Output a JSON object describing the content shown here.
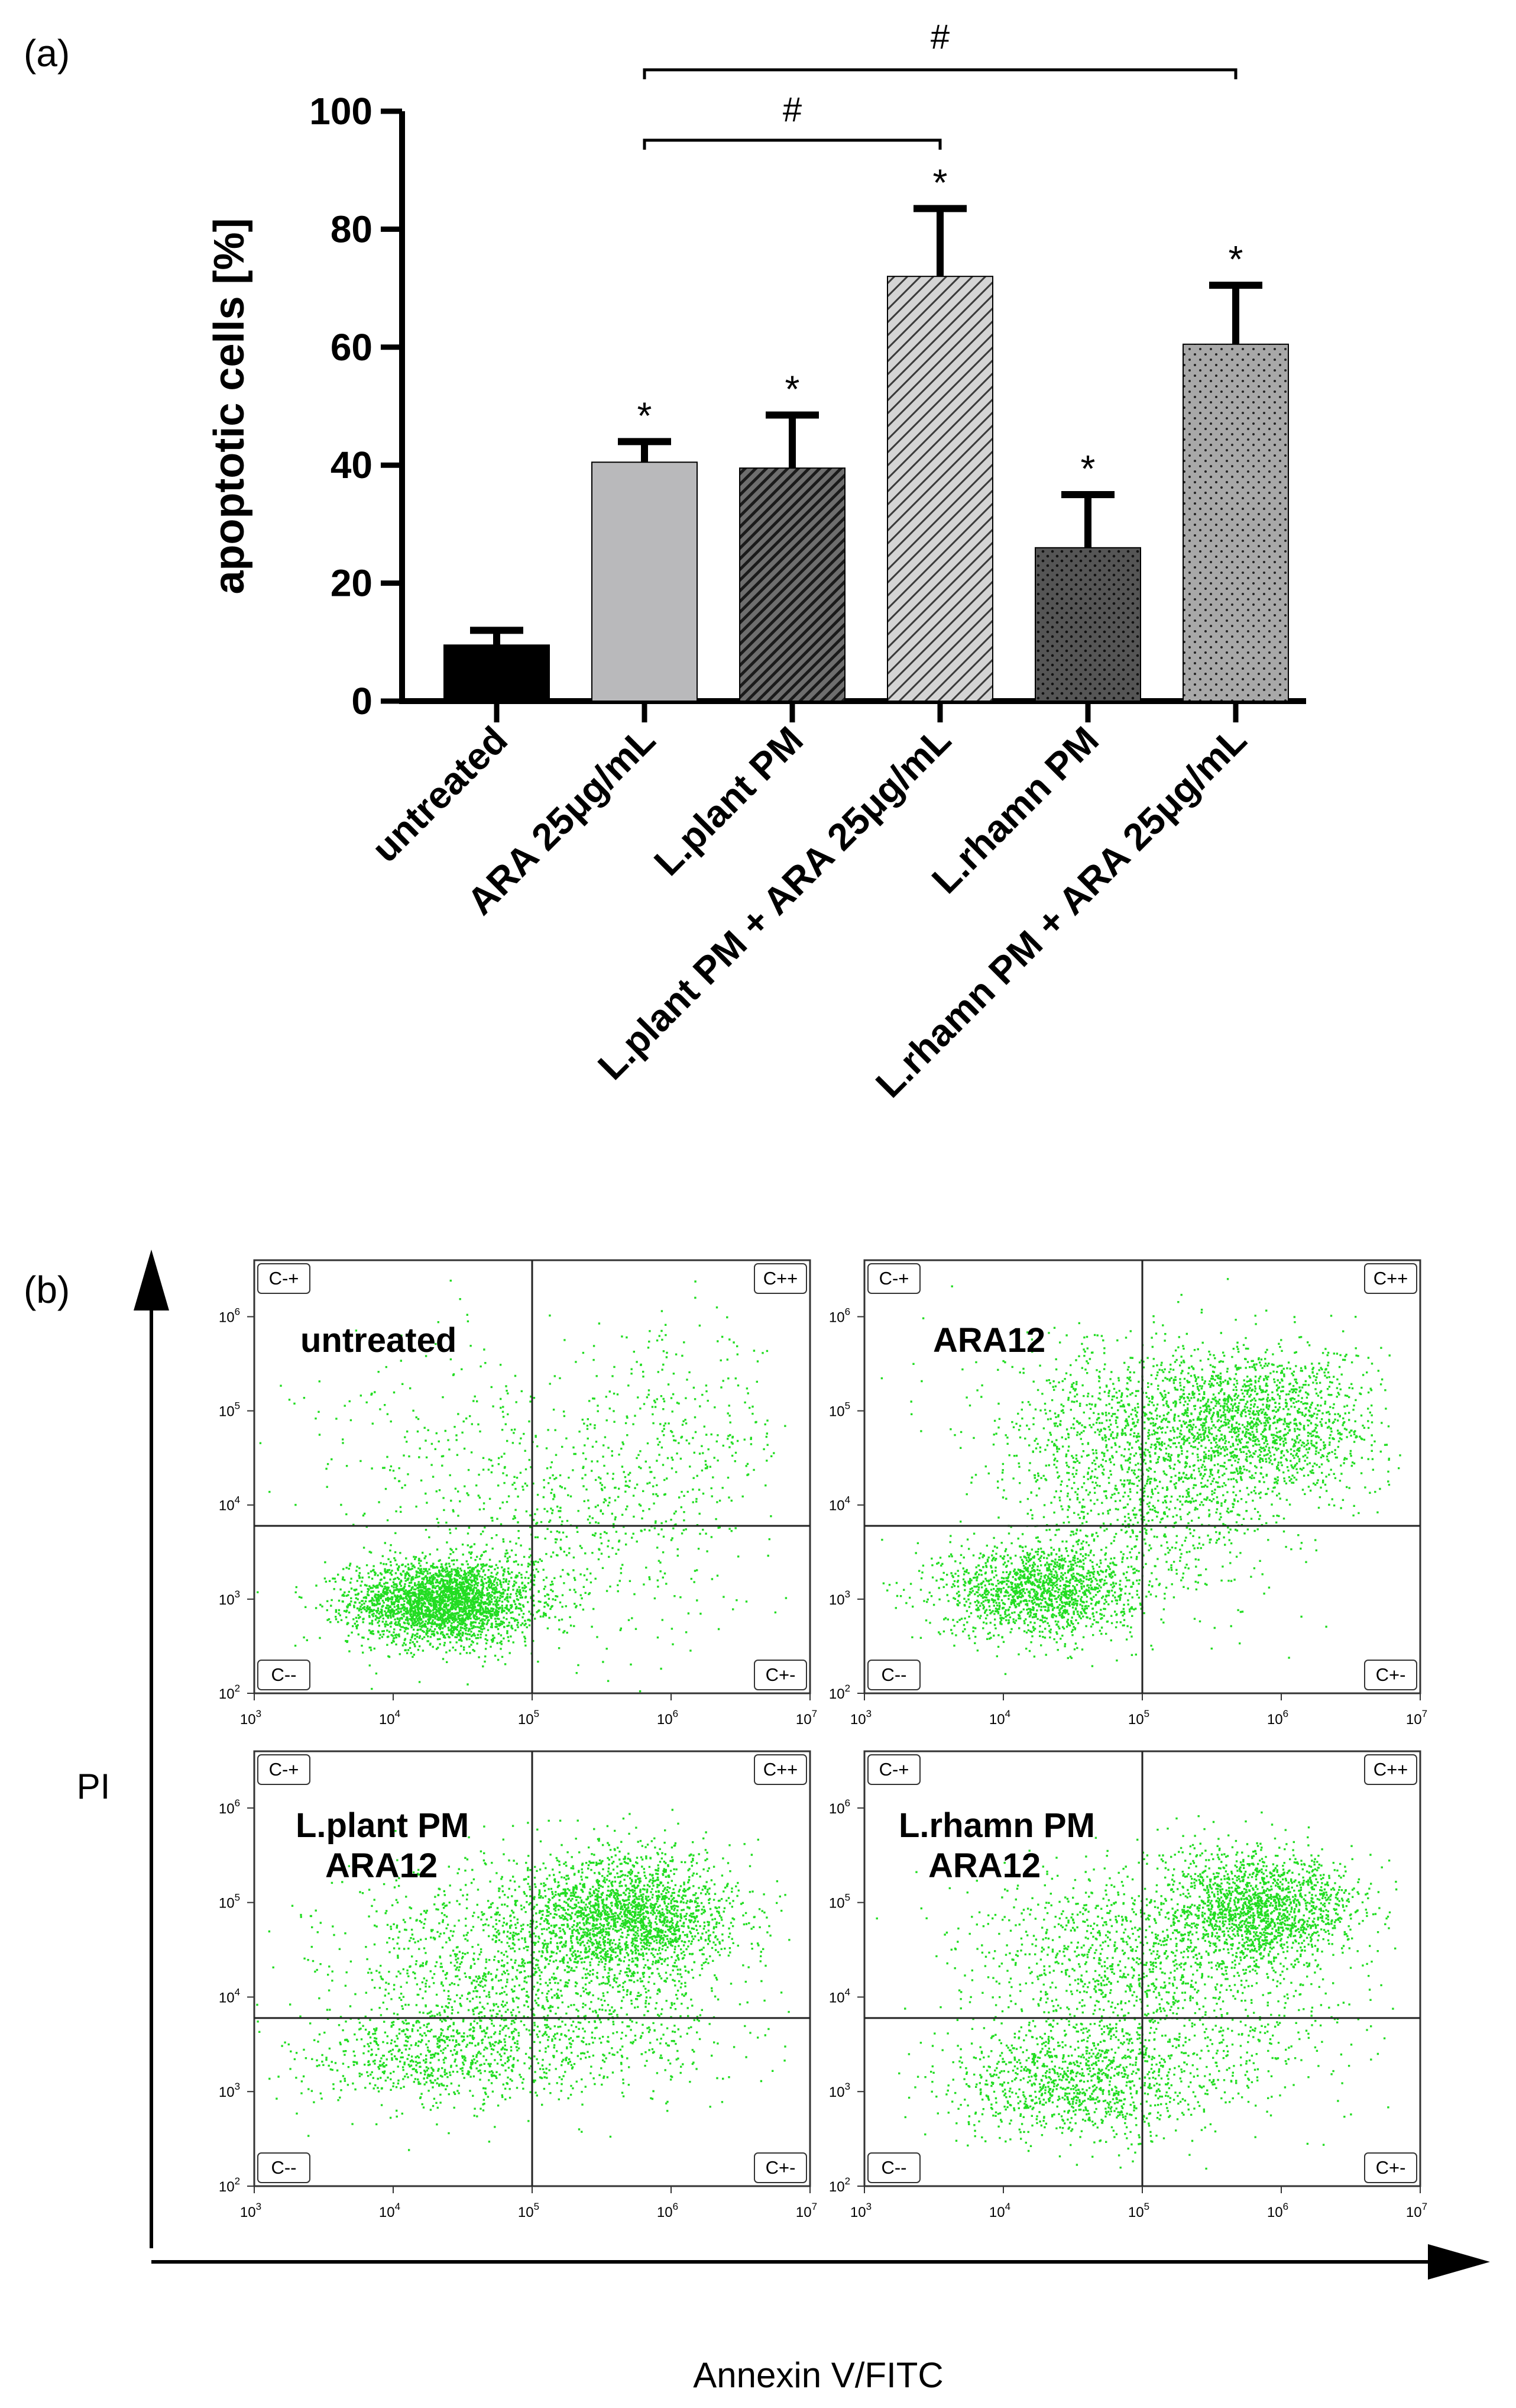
{
  "panel_a_label": "(a)",
  "panel_b_label": "(b)",
  "chart_data": [
    {
      "type": "bar",
      "ylabel": "apoptotic cells [%]",
      "xlabel": "",
      "ylim": [
        0,
        100
      ],
      "yticks": [
        0,
        20,
        40,
        60,
        80,
        100
      ],
      "categories": [
        "untreated",
        "ARA 25μg/mL",
        "L.plant PM",
        "L.plant PM + ARA 25μg/mL",
        "L.rhamn PM",
        "L.rhamn PM + ARA 25μg/mL"
      ],
      "values": [
        9.5,
        40.5,
        39.5,
        72,
        26,
        60.5
      ],
      "errors": [
        2.5,
        3.5,
        9,
        11.5,
        9,
        10
      ],
      "significance_marks": [
        "",
        "*",
        "*",
        "*",
        "*",
        "*"
      ],
      "bar_fills": [
        "solid black",
        "solid light gray",
        "dense diagonal hatch, dark",
        "diagonal hatch, light",
        "dotted, dark",
        "dotted, light"
      ],
      "comparison_brackets": [
        {
          "from": "ARA 25μg/mL",
          "to": "L.plant PM + ARA 25μg/mL",
          "label": "#"
        },
        {
          "from": "ARA 25μg/mL",
          "to": "L.rhamn PM + ARA 25μg/mL",
          "label": "#"
        }
      ],
      "grid": false
    },
    {
      "type": "scatter",
      "xlabel": "Annexin V/FITC",
      "ylabel": "PI",
      "x_scale": "log",
      "y_scale": "log",
      "x_tick_exponents": [
        3,
        4,
        5,
        6,
        7
      ],
      "y_tick_exponents": [
        2,
        3,
        4,
        5,
        6
      ],
      "tick_base": "10",
      "gate_x": 100000,
      "gate_y": 6000,
      "quadrant_labels": {
        "upper_left": "C-+",
        "upper_right": "C++",
        "lower_left": "C--",
        "lower_right": "C+-"
      },
      "point_color": "#22dd22",
      "panels": [
        {
          "name": "untreated",
          "label_lines": [
            "untreated"
          ]
        },
        {
          "name": "ara12",
          "label_lines": [
            "ARA12"
          ]
        },
        {
          "name": "lplant",
          "label_lines": [
            "L.plant PM",
            "ARA12"
          ]
        },
        {
          "name": "lrhamn",
          "label_lines": [
            "L.rhamn PM",
            "ARA12"
          ]
        }
      ]
    }
  ]
}
